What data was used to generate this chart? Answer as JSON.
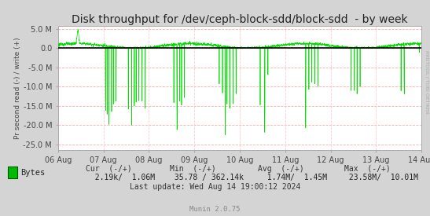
{
  "title": "Disk throughput for /dev/ceph-block-sdd/block-sdd  - by week",
  "ylabel": "Pr second read (-) / write (+)",
  "ylim": [
    -26500000,
    5800000
  ],
  "yticks": [
    5000000,
    0,
    -5000000,
    -10000000,
    -15000000,
    -20000000,
    -25000000
  ],
  "ytick_labels": [
    "5.0 M",
    "0.0",
    "-5.0 M",
    "-10.0 M",
    "-15.0 M",
    "-20.0 M",
    "-25.0 M"
  ],
  "xtick_labels": [
    "06 Aug",
    "07 Aug",
    "08 Aug",
    "09 Aug",
    "10 Aug",
    "11 Aug",
    "12 Aug",
    "13 Aug",
    "14 Aug"
  ],
  "bg_color": "#d4d4d4",
  "plot_bg_color": "#ffffff",
  "grid_color_h": "#ffaaaa",
  "grid_color_v": "#ffcccc",
  "line_color": "#00dd00",
  "zero_line_color": "#000000",
  "legend_label": "Bytes",
  "legend_color": "#00bb00",
  "cur_neg": "2.19k/",
  "cur_pos": "1.06M",
  "min_neg": "35.78 /",
  "min_pos": "362.14k",
  "avg_neg": "1.74M/",
  "avg_pos": "1.45M",
  "max_neg": "23.58M/",
  "max_pos": "10.01M",
  "last_update": "Last update: Wed Aug 14 19:00:12 2024",
  "munin_version": "Munin 2.0.75",
  "watermark": "RRDTOOL / TOBI OETIKER",
  "title_fontsize": 10,
  "tick_fontsize": 7,
  "stats_fontsize": 7
}
